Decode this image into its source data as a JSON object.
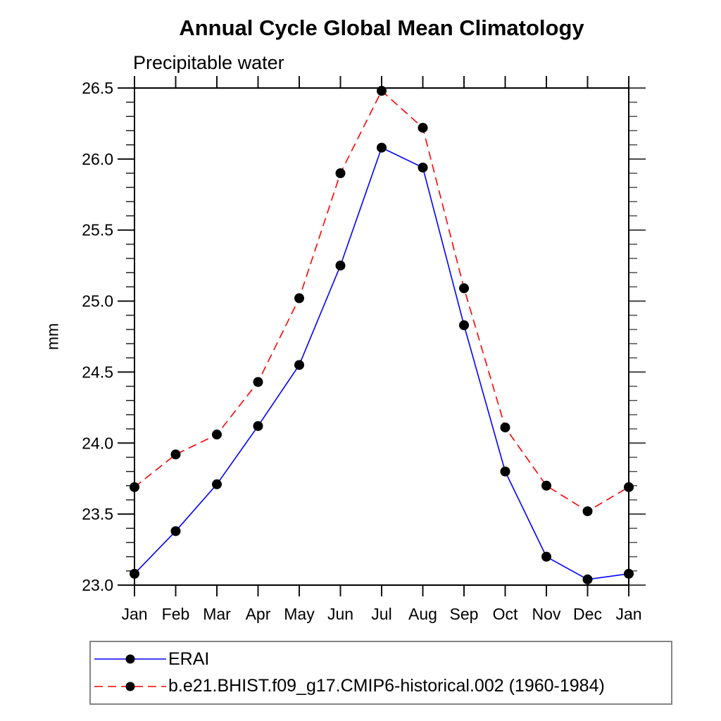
{
  "figure": {
    "title": "Annual Cycle Global Mean Climatology",
    "subtitle_left": "Precipitable water"
  },
  "chart_data": {
    "type": "line",
    "title": "Annual Cycle Global Mean Climatology",
    "subtitle_left": "Precipitable water",
    "ylabel": "mm",
    "x_categories": [
      "Jan",
      "Feb",
      "Mar",
      "Apr",
      "May",
      "Jun",
      "Jul",
      "Aug",
      "Sep",
      "Oct",
      "Nov",
      "Dec",
      "Jan"
    ],
    "ylim": [
      23.0,
      26.5
    ],
    "ytick_labels": [
      "23.0",
      "23.5",
      "24.0",
      "24.5",
      "25.0",
      "25.5",
      "26.0",
      "26.5"
    ],
    "ytick_major_interval": 0.5,
    "ytick_minor_interval": 0.1,
    "grid": false,
    "frame_color": "#000000",
    "marker_color": "#000000",
    "legend_position": "bottom-left-box",
    "series": [
      {
        "name": "ERAI",
        "color": "#0000ff",
        "style": "solid",
        "marker": "circle",
        "values": [
          23.08,
          23.38,
          23.71,
          24.12,
          24.55,
          25.25,
          26.08,
          25.94,
          24.83,
          23.8,
          23.2,
          23.04,
          23.08
        ]
      },
      {
        "name": "b.e21.BHIST.f09_g17.CMIP6-historical.002 (1960-1984)",
        "color": "#ff0000",
        "style": "dashed",
        "marker": "circle",
        "values": [
          23.69,
          23.92,
          24.06,
          24.43,
          25.02,
          25.9,
          26.48,
          26.22,
          25.09,
          24.11,
          23.7,
          23.52,
          23.69
        ]
      }
    ]
  }
}
